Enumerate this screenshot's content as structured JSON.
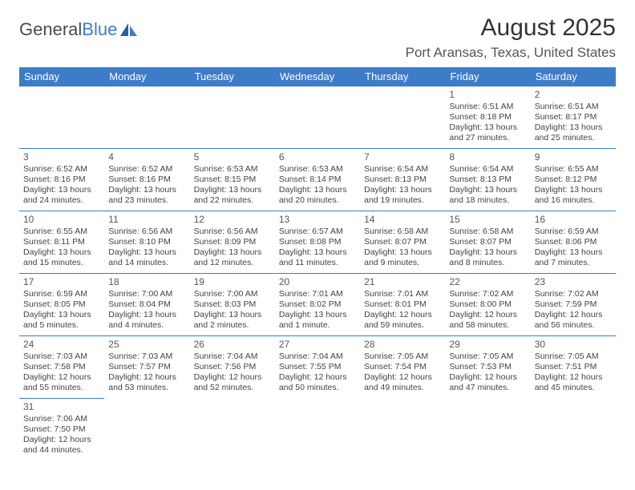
{
  "logo": {
    "text_general": "General",
    "text_blue": "Blue"
  },
  "title": "August 2025",
  "location": "Port Aransas, Texas, United States",
  "colors": {
    "header_bg": "#3d7cc9",
    "header_fg": "#ffffff",
    "border": "#3d7cc9",
    "text": "#444444",
    "title": "#333333"
  },
  "day_headers": [
    "Sunday",
    "Monday",
    "Tuesday",
    "Wednesday",
    "Thursday",
    "Friday",
    "Saturday"
  ],
  "weeks": [
    [
      null,
      null,
      null,
      null,
      null,
      {
        "n": "1",
        "sunrise": "Sunrise: 6:51 AM",
        "sunset": "Sunset: 8:18 PM",
        "daylight": "Daylight: 13 hours and 27 minutes."
      },
      {
        "n": "2",
        "sunrise": "Sunrise: 6:51 AM",
        "sunset": "Sunset: 8:17 PM",
        "daylight": "Daylight: 13 hours and 25 minutes."
      }
    ],
    [
      {
        "n": "3",
        "sunrise": "Sunrise: 6:52 AM",
        "sunset": "Sunset: 8:16 PM",
        "daylight": "Daylight: 13 hours and 24 minutes."
      },
      {
        "n": "4",
        "sunrise": "Sunrise: 6:52 AM",
        "sunset": "Sunset: 8:16 PM",
        "daylight": "Daylight: 13 hours and 23 minutes."
      },
      {
        "n": "5",
        "sunrise": "Sunrise: 6:53 AM",
        "sunset": "Sunset: 8:15 PM",
        "daylight": "Daylight: 13 hours and 22 minutes."
      },
      {
        "n": "6",
        "sunrise": "Sunrise: 6:53 AM",
        "sunset": "Sunset: 8:14 PM",
        "daylight": "Daylight: 13 hours and 20 minutes."
      },
      {
        "n": "7",
        "sunrise": "Sunrise: 6:54 AM",
        "sunset": "Sunset: 8:13 PM",
        "daylight": "Daylight: 13 hours and 19 minutes."
      },
      {
        "n": "8",
        "sunrise": "Sunrise: 6:54 AM",
        "sunset": "Sunset: 8:13 PM",
        "daylight": "Daylight: 13 hours and 18 minutes."
      },
      {
        "n": "9",
        "sunrise": "Sunrise: 6:55 AM",
        "sunset": "Sunset: 8:12 PM",
        "daylight": "Daylight: 13 hours and 16 minutes."
      }
    ],
    [
      {
        "n": "10",
        "sunrise": "Sunrise: 6:55 AM",
        "sunset": "Sunset: 8:11 PM",
        "daylight": "Daylight: 13 hours and 15 minutes."
      },
      {
        "n": "11",
        "sunrise": "Sunrise: 6:56 AM",
        "sunset": "Sunset: 8:10 PM",
        "daylight": "Daylight: 13 hours and 14 minutes."
      },
      {
        "n": "12",
        "sunrise": "Sunrise: 6:56 AM",
        "sunset": "Sunset: 8:09 PM",
        "daylight": "Daylight: 13 hours and 12 minutes."
      },
      {
        "n": "13",
        "sunrise": "Sunrise: 6:57 AM",
        "sunset": "Sunset: 8:08 PM",
        "daylight": "Daylight: 13 hours and 11 minutes."
      },
      {
        "n": "14",
        "sunrise": "Sunrise: 6:58 AM",
        "sunset": "Sunset: 8:07 PM",
        "daylight": "Daylight: 13 hours and 9 minutes."
      },
      {
        "n": "15",
        "sunrise": "Sunrise: 6:58 AM",
        "sunset": "Sunset: 8:07 PM",
        "daylight": "Daylight: 13 hours and 8 minutes."
      },
      {
        "n": "16",
        "sunrise": "Sunrise: 6:59 AM",
        "sunset": "Sunset: 8:06 PM",
        "daylight": "Daylight: 13 hours and 7 minutes."
      }
    ],
    [
      {
        "n": "17",
        "sunrise": "Sunrise: 6:59 AM",
        "sunset": "Sunset: 8:05 PM",
        "daylight": "Daylight: 13 hours and 5 minutes."
      },
      {
        "n": "18",
        "sunrise": "Sunrise: 7:00 AM",
        "sunset": "Sunset: 8:04 PM",
        "daylight": "Daylight: 13 hours and 4 minutes."
      },
      {
        "n": "19",
        "sunrise": "Sunrise: 7:00 AM",
        "sunset": "Sunset: 8:03 PM",
        "daylight": "Daylight: 13 hours and 2 minutes."
      },
      {
        "n": "20",
        "sunrise": "Sunrise: 7:01 AM",
        "sunset": "Sunset: 8:02 PM",
        "daylight": "Daylight: 13 hours and 1 minute."
      },
      {
        "n": "21",
        "sunrise": "Sunrise: 7:01 AM",
        "sunset": "Sunset: 8:01 PM",
        "daylight": "Daylight: 12 hours and 59 minutes."
      },
      {
        "n": "22",
        "sunrise": "Sunrise: 7:02 AM",
        "sunset": "Sunset: 8:00 PM",
        "daylight": "Daylight: 12 hours and 58 minutes."
      },
      {
        "n": "23",
        "sunrise": "Sunrise: 7:02 AM",
        "sunset": "Sunset: 7:59 PM",
        "daylight": "Daylight: 12 hours and 56 minutes."
      }
    ],
    [
      {
        "n": "24",
        "sunrise": "Sunrise: 7:03 AM",
        "sunset": "Sunset: 7:58 PM",
        "daylight": "Daylight: 12 hours and 55 minutes."
      },
      {
        "n": "25",
        "sunrise": "Sunrise: 7:03 AM",
        "sunset": "Sunset: 7:57 PM",
        "daylight": "Daylight: 12 hours and 53 minutes."
      },
      {
        "n": "26",
        "sunrise": "Sunrise: 7:04 AM",
        "sunset": "Sunset: 7:56 PM",
        "daylight": "Daylight: 12 hours and 52 minutes."
      },
      {
        "n": "27",
        "sunrise": "Sunrise: 7:04 AM",
        "sunset": "Sunset: 7:55 PM",
        "daylight": "Daylight: 12 hours and 50 minutes."
      },
      {
        "n": "28",
        "sunrise": "Sunrise: 7:05 AM",
        "sunset": "Sunset: 7:54 PM",
        "daylight": "Daylight: 12 hours and 49 minutes."
      },
      {
        "n": "29",
        "sunrise": "Sunrise: 7:05 AM",
        "sunset": "Sunset: 7:53 PM",
        "daylight": "Daylight: 12 hours and 47 minutes."
      },
      {
        "n": "30",
        "sunrise": "Sunrise: 7:05 AM",
        "sunset": "Sunset: 7:51 PM",
        "daylight": "Daylight: 12 hours and 45 minutes."
      }
    ],
    [
      {
        "n": "31",
        "sunrise": "Sunrise: 7:06 AM",
        "sunset": "Sunset: 7:50 PM",
        "daylight": "Daylight: 12 hours and 44 minutes."
      },
      null,
      null,
      null,
      null,
      null,
      null
    ]
  ]
}
